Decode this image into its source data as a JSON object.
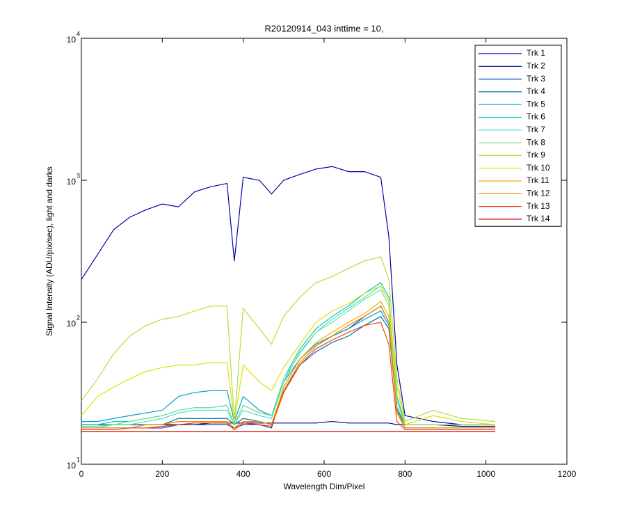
{
  "chart_data": {
    "type": "line",
    "title": "R20120914_043 inttime = 10,",
    "x_label": "Wavelength Dim/Pixel",
    "y_label": "Signal Intensity (ADU/pix/sec), light and darks",
    "xlim": [
      0,
      1200
    ],
    "xticks": [
      0,
      200,
      400,
      600,
      800,
      1000,
      1200
    ],
    "ylim": [
      10,
      10000
    ],
    "yscale": "log",
    "yticks": [
      {
        "value": 10,
        "label": "10",
        "exponent": "1"
      },
      {
        "value": 100,
        "label": "10",
        "exponent": "2"
      },
      {
        "value": 1000,
        "label": "10",
        "exponent": "3"
      },
      {
        "value": 10000,
        "label": "10",
        "exponent": "4"
      }
    ],
    "legend": "upper right",
    "x": [
      0,
      40,
      80,
      120,
      160,
      200,
      240,
      280,
      320,
      360,
      378,
      400,
      440,
      470,
      500,
      540,
      580,
      620,
      660,
      700,
      740,
      760,
      780,
      800,
      870,
      940,
      1023
    ],
    "series": [
      {
        "name": "Trk 1",
        "color": "#0000a8",
        "values": [
          200,
          300,
          450,
          550,
          620,
          680,
          650,
          830,
          900,
          950,
          270,
          1050,
          1000,
          800,
          1000,
          1100,
          1200,
          1250,
          1150,
          1150,
          1050,
          400,
          50,
          22,
          20,
          19,
          19
        ]
      },
      {
        "name": "Trk 2",
        "color": "#000080",
        "values": [
          19,
          19,
          19,
          19,
          19,
          19,
          19,
          19,
          19.5,
          19.5,
          19.5,
          19.5,
          19.5,
          19.5,
          19.5,
          19.5,
          19.5,
          20,
          19.5,
          19.5,
          19.5,
          19.5,
          19,
          19,
          19,
          18.5,
          18.5
        ]
      },
      {
        "name": "Trk 3",
        "color": "#0040c0",
        "values": [
          18,
          18,
          18,
          18,
          18,
          18,
          19,
          19,
          19,
          19,
          18,
          19,
          19,
          18,
          35,
          55,
          70,
          80,
          90,
          110,
          130,
          100,
          25,
          18,
          18,
          18,
          18
        ]
      },
      {
        "name": "Trk 4",
        "color": "#0070b0",
        "values": [
          19,
          19,
          19,
          19,
          19,
          19,
          21,
          21,
          21,
          21,
          19,
          21,
          20,
          19,
          33,
          50,
          62,
          72,
          80,
          95,
          110,
          90,
          24,
          18,
          18,
          18,
          18
        ]
      },
      {
        "name": "Trk 5",
        "color": "#00a0d0",
        "values": [
          20,
          20,
          21,
          22,
          23,
          24,
          30,
          32,
          33,
          33,
          20,
          30,
          24,
          22,
          38,
          55,
          70,
          80,
          90,
          105,
          120,
          95,
          25,
          19,
          19,
          19,
          19
        ]
      },
      {
        "name": "Trk 6",
        "color": "#00c8c8",
        "values": [
          19,
          19,
          20,
          20,
          21,
          22,
          24,
          25,
          25,
          26,
          19,
          26,
          23,
          22,
          40,
          65,
          90,
          110,
          130,
          160,
          190,
          150,
          30,
          19,
          19,
          19,
          19
        ]
      },
      {
        "name": "Trk 7",
        "color": "#40e0d0",
        "values": [
          18.5,
          18.5,
          19,
          19,
          20,
          21,
          23,
          24,
          24,
          24,
          19,
          24,
          22,
          21,
          38,
          62,
          85,
          105,
          125,
          150,
          180,
          140,
          28,
          19,
          19,
          19,
          19
        ]
      },
      {
        "name": "Trk 8",
        "color": "#80e080",
        "values": [
          18,
          18,
          19,
          20,
          21,
          22,
          24,
          25,
          25,
          26,
          19,
          26,
          23,
          22,
          40,
          60,
          85,
          100,
          120,
          145,
          170,
          130,
          28,
          19,
          19,
          19,
          19
        ]
      },
      {
        "name": "Trk 9",
        "color": "#b0e040",
        "values": [
          28,
          40,
          60,
          80,
          95,
          105,
          110,
          120,
          130,
          130,
          20,
          125,
          90,
          70,
          110,
          150,
          190,
          210,
          240,
          270,
          290,
          200,
          40,
          20,
          24,
          21,
          20
        ]
      },
      {
        "name": "Trk 10",
        "color": "#e0e000",
        "values": [
          22,
          30,
          35,
          40,
          45,
          48,
          50,
          50,
          52,
          52,
          20,
          50,
          38,
          33,
          48,
          70,
          100,
          120,
          135,
          160,
          180,
          140,
          35,
          19,
          22,
          20,
          19
        ]
      },
      {
        "name": "Trk 11",
        "color": "#f0b000",
        "values": [
          18,
          18,
          18,
          18,
          19,
          19,
          20,
          20,
          20,
          20,
          18,
          20,
          20,
          19,
          35,
          55,
          72,
          85,
          100,
          115,
          140,
          110,
          24,
          18,
          18,
          18,
          18
        ]
      },
      {
        "name": "Trk 12",
        "color": "#f08000",
        "values": [
          18,
          18,
          18,
          18,
          19,
          19,
          20,
          20,
          20,
          20,
          18,
          20,
          20,
          19,
          33,
          52,
          68,
          80,
          95,
          110,
          130,
          100,
          23,
          18,
          18,
          18,
          18
        ]
      },
      {
        "name": "Trk 13",
        "color": "#f04000",
        "values": [
          17.5,
          17.5,
          17.5,
          18,
          18,
          18.5,
          19,
          19.5,
          19.5,
          19.5,
          17.5,
          19.5,
          19,
          18.5,
          32,
          50,
          65,
          75,
          85,
          95,
          100,
          70,
          20,
          17.5,
          17.5,
          17.5,
          17.5
        ]
      },
      {
        "name": "Trk 14",
        "color": "#d00000",
        "values": [
          17,
          17,
          17,
          17,
          17,
          17,
          17,
          17,
          17,
          17,
          17,
          17,
          17,
          17,
          17,
          17,
          17,
          17,
          17,
          17,
          17,
          17,
          17,
          17,
          17,
          17,
          17
        ]
      }
    ]
  }
}
